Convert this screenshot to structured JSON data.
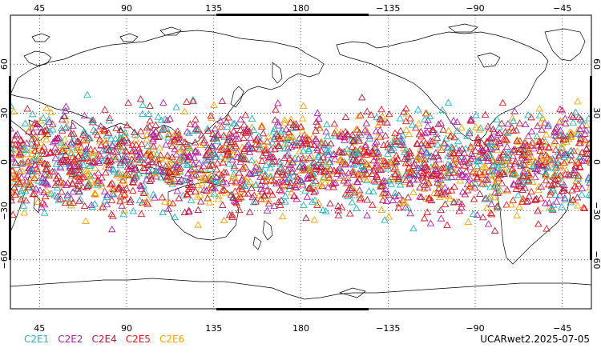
{
  "map": {
    "projection": "cylindrical-equidistant",
    "center_longitude": 180,
    "lon_range": [
      30,
      330
    ],
    "lat_range": [
      -90,
      90
    ],
    "lon_ticks": [
      {
        "value": 45,
        "label": "45"
      },
      {
        "value": 90,
        "label": "90"
      },
      {
        "value": 135,
        "label": "135"
      },
      {
        "value": 180,
        "label": "180"
      },
      {
        "value": 225,
        "label": "−135"
      },
      {
        "value": 270,
        "label": "−90"
      },
      {
        "value": 315,
        "label": "−45"
      }
    ],
    "lat_ticks": [
      {
        "value": 60,
        "label": "60"
      },
      {
        "value": 30,
        "label": "30"
      },
      {
        "value": 0,
        "label": "0"
      },
      {
        "value": -30,
        "label": "−30"
      },
      {
        "value": -60,
        "label": "−60"
      }
    ],
    "grid": "dotted",
    "coastline_color": "#000000"
  },
  "legend": {
    "items": [
      {
        "label": "C2E1",
        "color": "#1fb4c4"
      },
      {
        "label": "C2E2",
        "color": "#b01fb0"
      },
      {
        "label": "C2E4",
        "color": "#b81a3a"
      },
      {
        "label": "C2E5",
        "color": "#e8161e"
      },
      {
        "label": "C2E6",
        "color": "#f4a400"
      }
    ]
  },
  "footer": {
    "dataset": "UCARwet2.2025-07-05"
  },
  "observations": {
    "marker": "open-triangle",
    "lat_extent": [
      -45,
      45
    ],
    "distribution": "dense global band"
  }
}
